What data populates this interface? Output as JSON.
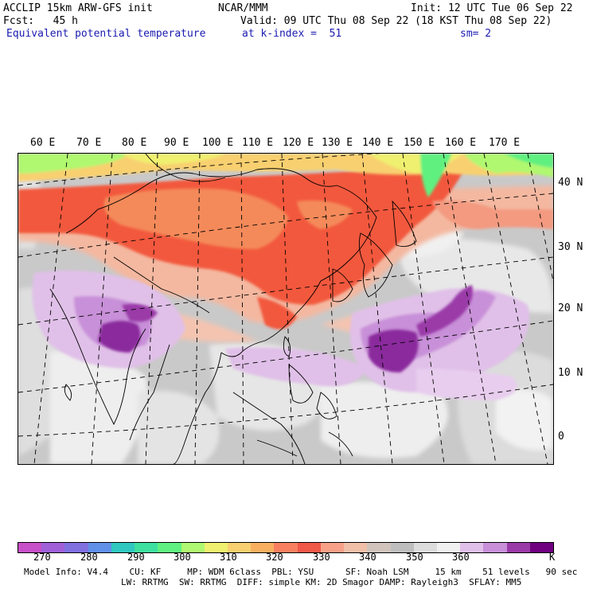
{
  "header": {
    "line1_left": "ACCLIP 15km ARW-GFS init",
    "line1_center": "NCAR/MMM",
    "line1_right": "Init: 12 UTC Tue 06 Sep 22",
    "line2_left": "Fcst:   45 h",
    "line2_right": "Valid: 09 UTC Thu 08 Sep 22 (18 KST Thu 08 Sep 22)",
    "line3_left": "Equivalent potential temperature",
    "line3_center": "at k-index =  51",
    "line3_right": "sm= 2"
  },
  "map": {
    "lon_labels": [
      "60 E",
      "70 E",
      "80 E",
      "90 E",
      "100 E",
      "110 E",
      "120 E",
      "130 E",
      "140 E",
      "150 E",
      "160 E",
      "170 E"
    ],
    "lat_labels": [
      "40 N",
      "30 N",
      "20 N",
      "10 N",
      "0"
    ]
  },
  "colorbar": {
    "colors": [
      "#c850c8",
      "#a060d8",
      "#8070e0",
      "#6090e8",
      "#30c8c0",
      "#40e0a0",
      "#60f080",
      "#b0f870",
      "#f0f070",
      "#f8d070",
      "#f8b060",
      "#f88060",
      "#f05848",
      "#f8a088",
      "#f0c0a8",
      "#d0c4bc",
      "#bebebe",
      "#dcdcdc",
      "#f0f0f0",
      "#e0c0e8",
      "#c890d8",
      "#9a3aa8",
      "#700080"
    ],
    "labels": [
      "270",
      "280",
      "290",
      "300",
      "310",
      "320",
      "330",
      "340",
      "350",
      "360"
    ],
    "unit": "K"
  },
  "footer": {
    "line1": "Model Info: V4.4    CU: KF     MP: WDM 6class  PBL: YSU      SF: Noah LSM     15 km    51 levels   90 sec",
    "line2": "LW: RRTMG  SW: RRTMG  DIFF: simple KM: 2D Smagor DAMP: Rayleigh3  SFLAY: MM5"
  }
}
